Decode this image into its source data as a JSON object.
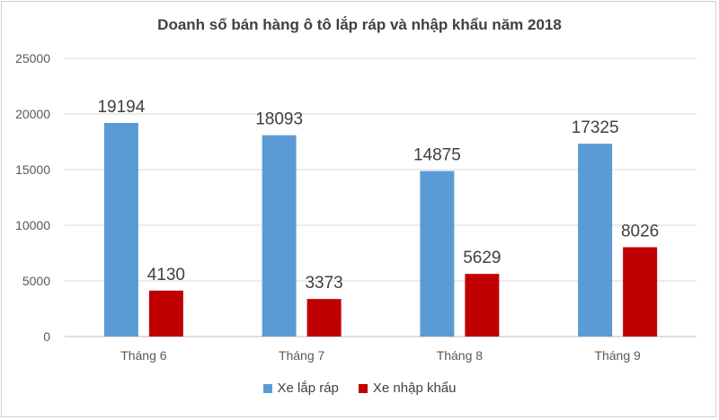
{
  "chart_data": {
    "type": "bar",
    "title": "Doanh số bán hàng ô tô lắp ráp và nhập khẩu năm 2018",
    "categories": [
      "Tháng 6",
      "Tháng 7",
      "Tháng 8",
      "Tháng 9"
    ],
    "series": [
      {
        "name": "Xe lắp ráp",
        "color": "#5B9BD5",
        "values": [
          19194,
          18093,
          14875,
          17325
        ]
      },
      {
        "name": "Xe nhập khẩu",
        "color": "#C00000",
        "values": [
          4130,
          3373,
          5629,
          8026
        ]
      }
    ],
    "yticks": [
      "0",
      "5000",
      "10000",
      "15000",
      "20000",
      "25000"
    ],
    "ylim": [
      0,
      25000
    ],
    "grid": true,
    "legend_position": "bottom"
  }
}
